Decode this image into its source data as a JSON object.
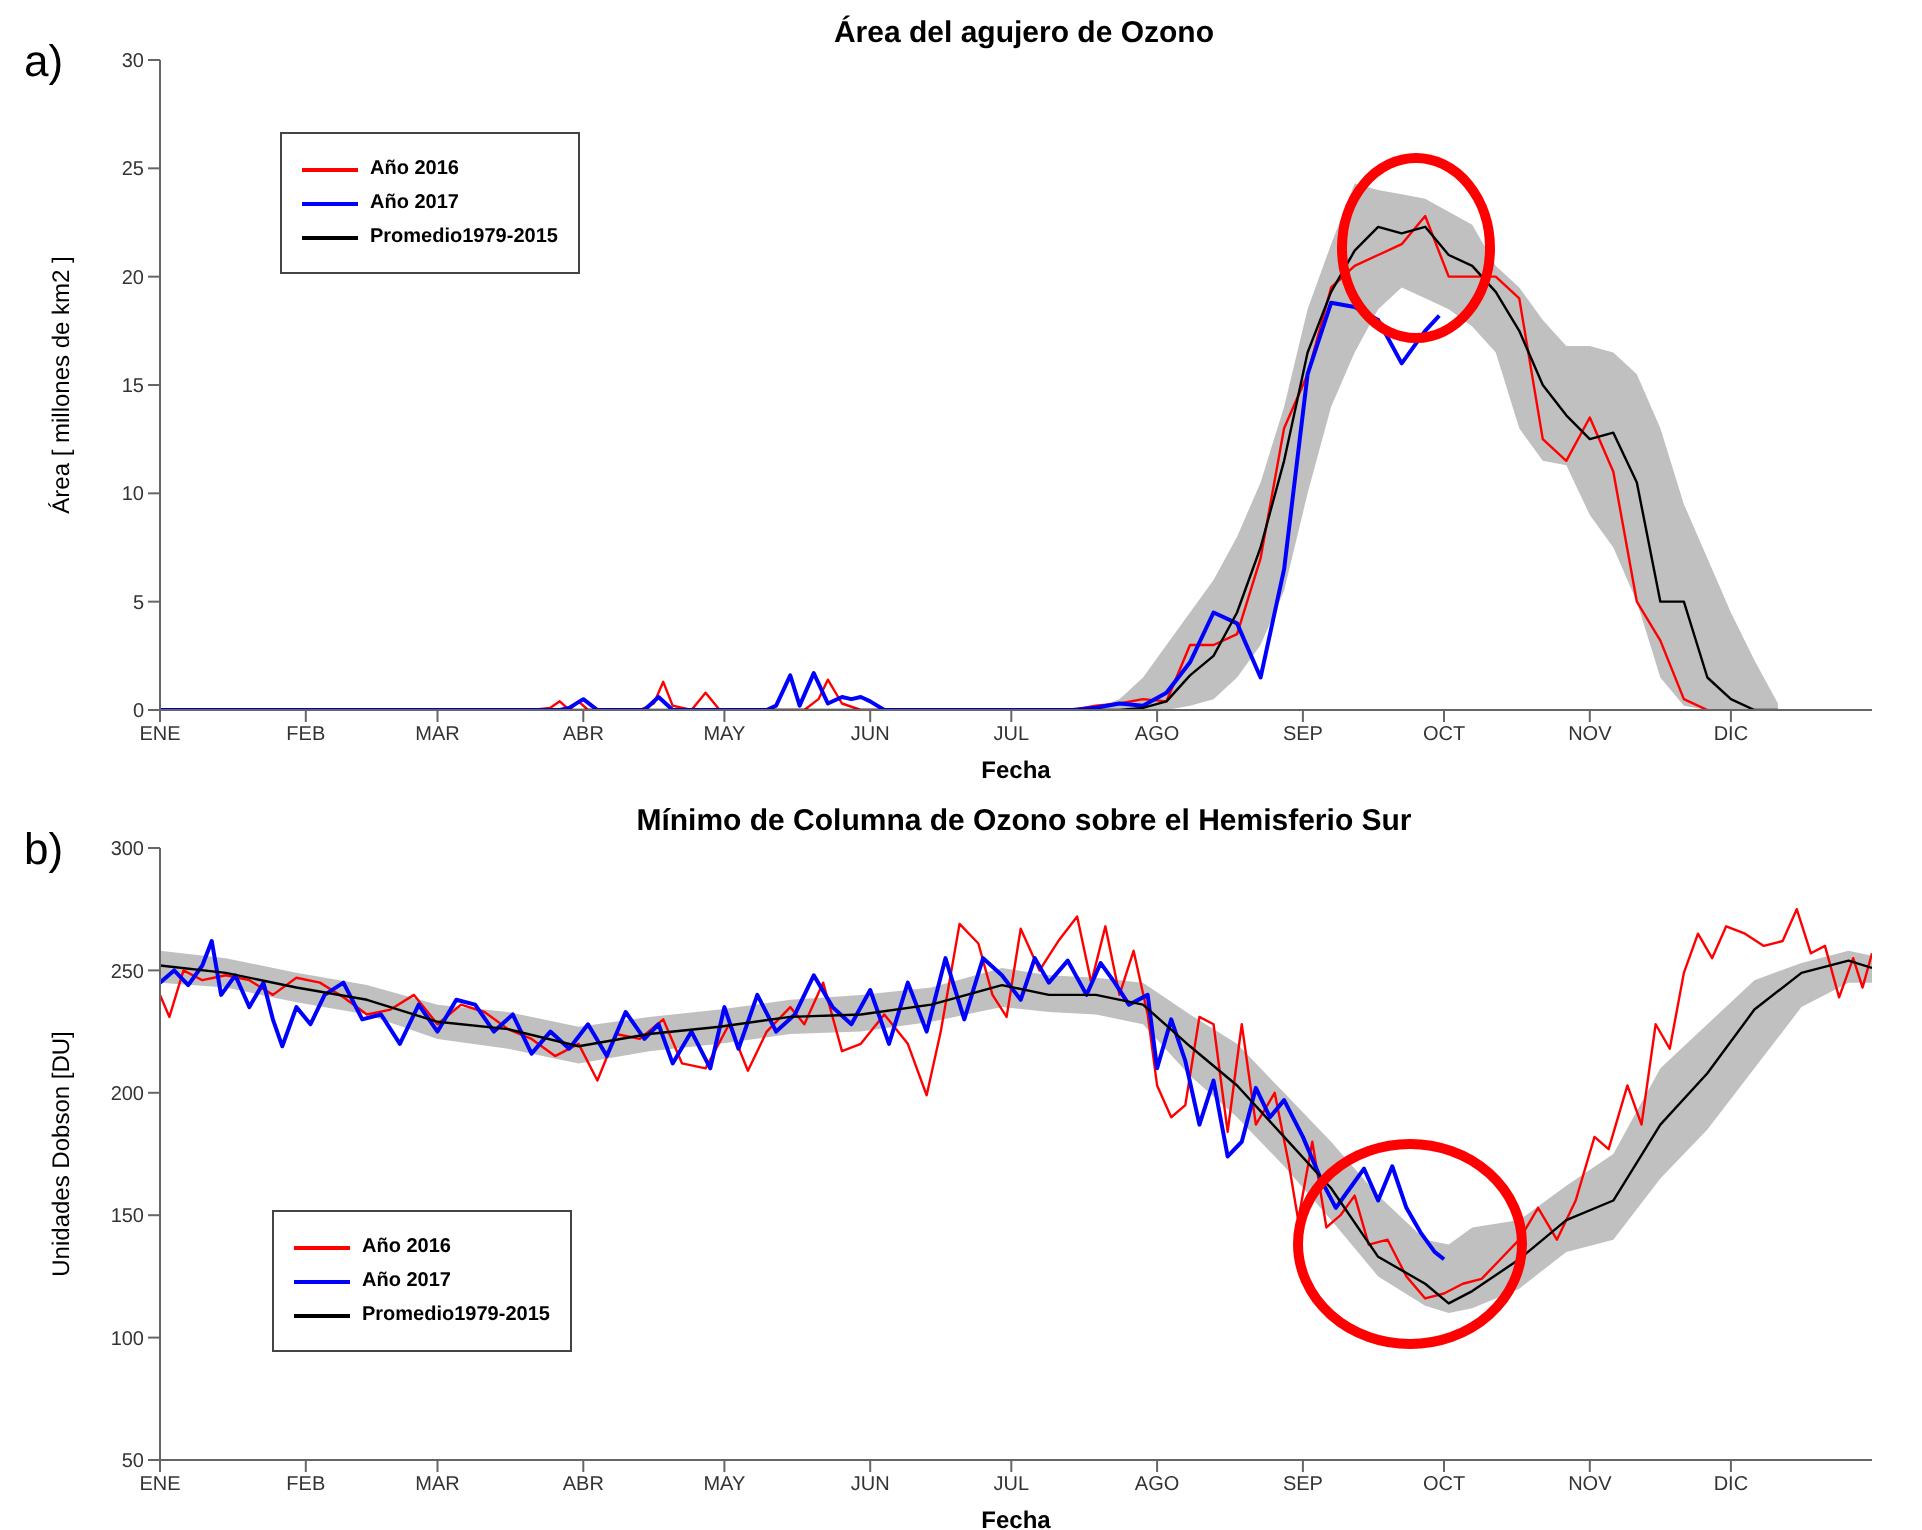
{
  "chart_data": [
    {
      "type": "line",
      "title": "Área del agujero de Ozono",
      "xlabel": "Fecha",
      "ylabel": "Área [ millones de km2 ]",
      "annotations": [
        "a)"
      ],
      "legend": "top left",
      "xlim": [
        "--01-01",
        "--12-31"
      ],
      "xticks": [
        {
          "value": "--01-01",
          "label": "ENE"
        },
        {
          "value": "--02-01",
          "label": "FEB"
        },
        {
          "value": "--03-01",
          "label": "MAR"
        },
        {
          "value": "--04-01",
          "label": "ABR"
        },
        {
          "value": "--05-01",
          "label": "MAY"
        },
        {
          "value": "--06-01",
          "label": "JUN"
        },
        {
          "value": "--07-01",
          "label": "JUL"
        },
        {
          "value": "--08-01",
          "label": "AGO"
        },
        {
          "value": "--09-01",
          "label": "SEP"
        },
        {
          "value": "--10-01",
          "label": "OCT"
        },
        {
          "value": "--11-01",
          "label": "NOV"
        },
        {
          "value": "--12-01",
          "label": "DIC"
        }
      ],
      "ylim": [
        0,
        30
      ],
      "yticks": [
        0,
        5,
        10,
        15,
        20,
        25,
        30
      ],
      "series": [
        {
          "name": "Año 2016",
          "color": "#ff0000",
          "x": [
            "--01-01",
            "--03-21",
            "--03-25",
            "--03-27",
            "--03-29",
            "--03-31",
            "--04-02",
            "--04-05",
            "--04-13",
            "--04-16",
            "--04-18",
            "--04-20",
            "--04-24",
            "--04-27",
            "--04-30",
            "--05-18",
            "--05-21",
            "--05-23",
            "--05-26",
            "--05-30",
            "--07-14",
            "--07-19",
            "--07-24",
            "--07-29",
            "--08-03",
            "--08-08",
            "--08-13",
            "--08-18",
            "--08-23",
            "--08-28",
            "--09-02",
            "--09-07",
            "--09-12",
            "--09-17",
            "--09-22",
            "--09-27",
            "--10-02",
            "--10-07",
            "--10-12",
            "--10-17",
            "--10-22",
            "--10-27",
            "--11-01",
            "--11-06",
            "--11-11",
            "--11-16",
            "--11-21",
            "--11-26"
          ],
          "values": [
            0,
            0,
            0.1,
            0.4,
            0,
            0.4,
            0,
            0,
            0,
            0.3,
            1.3,
            0.2,
            0,
            0.8,
            0,
            0,
            0.5,
            1.4,
            0.3,
            0,
            0,
            0.2,
            0.3,
            0.5,
            0.4,
            3,
            3,
            3.5,
            7,
            13,
            15.5,
            19.5,
            20.5,
            21,
            21.5,
            22.8,
            20,
            20,
            20,
            19,
            12.5,
            11.5,
            13.5,
            11,
            5,
            3.2,
            0.5,
            0
          ]
        },
        {
          "name": "Año 2017",
          "color": "#0000ff",
          "x": [
            "--01-01",
            "--03-27",
            "--03-29",
            "--04-01",
            "--04-04",
            "--04-14",
            "--04-17",
            "--04-20",
            "--05-10",
            "--05-12",
            "--05-15",
            "--05-17",
            "--05-20",
            "--05-23",
            "--05-26",
            "--05-28",
            "--05-30",
            "--06-01",
            "--06-04",
            "--06-07",
            "--07-14",
            "--07-19",
            "--07-24",
            "--07-29",
            "--08-03",
            "--08-08",
            "--08-13",
            "--08-18",
            "--08-23",
            "--08-28",
            "--09-02",
            "--09-07",
            "--09-12",
            "--09-17",
            "--09-22",
            "--09-27",
            "--09-30"
          ],
          "values": [
            0,
            0,
            0.1,
            0.5,
            0,
            0,
            0.6,
            0,
            0,
            0.2,
            1.6,
            0.2,
            1.7,
            0.3,
            0.6,
            0.5,
            0.6,
            0.4,
            0,
            0,
            0,
            0.1,
            0.3,
            0.2,
            0.8,
            2.2,
            4.5,
            4,
            1.5,
            6.5,
            15.5,
            18.8,
            18.6,
            18,
            16,
            17.5,
            18.2
          ]
        },
        {
          "name": "Promedio1979-2015",
          "color": "#000000",
          "x": [
            "--01-01",
            "--06-29",
            "--07-14",
            "--07-19",
            "--07-24",
            "--07-29",
            "--08-03",
            "--08-08",
            "--08-13",
            "--08-18",
            "--08-23",
            "--08-28",
            "--09-02",
            "--09-07",
            "--09-12",
            "--09-17",
            "--09-22",
            "--09-27",
            "--10-02",
            "--10-07",
            "--10-12",
            "--10-17",
            "--10-22",
            "--10-27",
            "--11-01",
            "--11-06",
            "--11-11",
            "--11-16",
            "--11-21",
            "--11-26",
            "--12-01",
            "--12-06",
            "--12-11"
          ],
          "values": [
            0,
            0,
            0,
            0,
            0,
            0.1,
            0.4,
            1.6,
            2.5,
            4.5,
            7.5,
            11.5,
            16.5,
            19.3,
            21.2,
            22.3,
            22,
            22.3,
            21,
            20.5,
            19.3,
            17.5,
            15,
            13.6,
            12.5,
            12.8,
            10.5,
            5,
            5,
            1.5,
            0.5,
            0,
            0
          ],
          "lower": [
            0,
            0,
            0,
            0,
            0,
            0,
            0,
            0.2,
            0.5,
            1.5,
            3,
            5.5,
            10,
            14,
            16.5,
            18.5,
            19.5,
            19,
            18.5,
            17.7,
            16.5,
            13,
            11.5,
            11.3,
            9,
            7.5,
            5,
            1.5,
            0.2,
            0,
            0,
            0,
            0
          ],
          "upper": [
            0,
            0,
            0,
            0.1,
            0.5,
            1.5,
            3,
            4.5,
            6,
            8,
            10.5,
            14,
            18.5,
            21.5,
            24.3,
            24,
            23.8,
            23.6,
            23,
            22.4,
            20.5,
            19.5,
            18,
            16.8,
            16.8,
            16.5,
            15.5,
            13,
            9.5,
            7,
            4.5,
            2.3,
            0.3
          ]
        }
      ]
    },
    {
      "type": "line",
      "title": "Mínimo de Columna de Ozono sobre el Hemisferio Sur",
      "xlabel": "Fecha",
      "ylabel": "Unidades Dobson [DU]",
      "annotations": [
        "b)"
      ],
      "legend": "bottom left",
      "xlim": [
        "--01-01",
        "--12-31"
      ],
      "xticks": [
        {
          "value": "--01-01",
          "label": "ENE"
        },
        {
          "value": "--02-01",
          "label": "FEB"
        },
        {
          "value": "--03-01",
          "label": "MAR"
        },
        {
          "value": "--04-01",
          "label": "ABR"
        },
        {
          "value": "--05-01",
          "label": "MAY"
        },
        {
          "value": "--06-01",
          "label": "JUN"
        },
        {
          "value": "--07-01",
          "label": "JUL"
        },
        {
          "value": "--08-01",
          "label": "AGO"
        },
        {
          "value": "--09-01",
          "label": "SEP"
        },
        {
          "value": "--10-01",
          "label": "OCT"
        },
        {
          "value": "--11-01",
          "label": "NOV"
        },
        {
          "value": "--12-01",
          "label": "DIC"
        }
      ],
      "ylim": [
        50,
        300
      ],
      "yticks": [
        50,
        100,
        150,
        200,
        250,
        300
      ],
      "series": [
        {
          "name": "Año 2016",
          "color": "#ff0000",
          "x": [
            "--01-01",
            "--01-03",
            "--01-06",
            "--01-10",
            "--01-15",
            "--01-20",
            "--01-25",
            "--01-30",
            "--02-04",
            "--02-09",
            "--02-14",
            "--02-19",
            "--02-24",
            "--03-01",
            "--03-06",
            "--03-11",
            "--03-16",
            "--03-21",
            "--03-26",
            "--03-31",
            "--04-04",
            "--04-08",
            "--04-13",
            "--04-18",
            "--04-22",
            "--04-27",
            "--05-02",
            "--05-06",
            "--05-10",
            "--05-15",
            "--05-18",
            "--05-22",
            "--05-26",
            "--05-30",
            "--06-04",
            "--06-09",
            "--06-13",
            "--06-16",
            "--06-20",
            "--06-24",
            "--06-27",
            "--06-30",
            "--07-03",
            "--07-07",
            "--07-11",
            "--07-15",
            "--07-18",
            "--07-21",
            "--07-24",
            "--07-27",
            "--07-30",
            "--08-01",
            "--08-04",
            "--08-07",
            "--08-10",
            "--08-13",
            "--08-16",
            "--08-19",
            "--08-22",
            "--08-26",
            "--08-29",
            "--08-31",
            "--09-03",
            "--09-06",
            "--09-09",
            "--09-12",
            "--09-15",
            "--09-19",
            "--09-23",
            "--09-27",
            "--10-01",
            "--10-05",
            "--10-09",
            "--10-13",
            "--10-17",
            "--10-21",
            "--10-25",
            "--10-29",
            "--11-02",
            "--11-05",
            "--11-09",
            "--11-12",
            "--11-15",
            "--11-18",
            "--11-21",
            "--11-24",
            "--11-27",
            "--11-30",
            "--12-04",
            "--12-08",
            "--12-12",
            "--12-15",
            "--12-18",
            "--12-21",
            "--12-24",
            "--12-27",
            "--12-29",
            "--12-31"
          ],
          "values": [
            240,
            231,
            250,
            246,
            248,
            246,
            240,
            247,
            245,
            239,
            232,
            234,
            240,
            228,
            236,
            233,
            226,
            222,
            215,
            220,
            205,
            224,
            222,
            230,
            212,
            210,
            228,
            209,
            225,
            235,
            228,
            245,
            217,
            220,
            232,
            220,
            199,
            225,
            269,
            261,
            240,
            231,
            267,
            250,
            262,
            272,
            245,
            268,
            240,
            258,
            232,
            203,
            190,
            195,
            231,
            228,
            184,
            228,
            187,
            200,
            171,
            148,
            180,
            145,
            150,
            158,
            138,
            140,
            125,
            116,
            118,
            122,
            124,
            132,
            140,
            153,
            140,
            156,
            182,
            177,
            203,
            187,
            228,
            218,
            249,
            265,
            255,
            268,
            265,
            260,
            262,
            275,
            257,
            260,
            239,
            255,
            243,
            257
          ]
        },
        {
          "name": "Año 2017",
          "color": "#0000ff",
          "x": [
            "--01-01",
            "--01-04",
            "--01-07",
            "--01-10",
            "--01-12",
            "--01-14",
            "--01-17",
            "--01-20",
            "--01-23",
            "--01-25",
            "--01-27",
            "--01-30",
            "--02-02",
            "--02-05",
            "--02-09",
            "--02-13",
            "--02-17",
            "--02-21",
            "--02-25",
            "--03-01",
            "--03-05",
            "--03-09",
            "--03-13",
            "--03-17",
            "--03-21",
            "--03-25",
            "--03-29",
            "--04-02",
            "--04-06",
            "--04-10",
            "--04-14",
            "--04-17",
            "--04-20",
            "--04-24",
            "--04-28",
            "--05-01",
            "--05-04",
            "--05-08",
            "--05-12",
            "--05-16",
            "--05-20",
            "--05-24",
            "--05-28",
            "--06-01",
            "--06-05",
            "--06-09",
            "--06-13",
            "--06-17",
            "--06-21",
            "--06-25",
            "--06-29",
            "--07-03",
            "--07-06",
            "--07-09",
            "--07-13",
            "--07-17",
            "--07-20",
            "--07-23",
            "--07-26",
            "--07-30",
            "--08-01",
            "--08-04",
            "--08-07",
            "--08-10",
            "--08-13",
            "--08-16",
            "--08-19",
            "--08-22",
            "--08-25",
            "--08-28",
            "--09-01",
            "--09-05",
            "--09-08",
            "--09-11",
            "--09-14",
            "--09-17",
            "--09-20",
            "--09-23",
            "--09-26",
            "--09-29",
            "--10-01"
          ],
          "values": [
            245,
            250,
            244,
            252,
            262,
            240,
            248,
            235,
            245,
            230,
            219,
            235,
            228,
            240,
            245,
            230,
            232,
            220,
            236,
            225,
            238,
            236,
            225,
            232,
            216,
            225,
            218,
            228,
            215,
            233,
            222,
            228,
            212,
            225,
            210,
            235,
            218,
            240,
            225,
            232,
            248,
            235,
            228,
            242,
            220,
            245,
            225,
            255,
            230,
            255,
            248,
            238,
            255,
            245,
            254,
            240,
            253,
            245,
            236,
            240,
            210,
            230,
            213,
            187,
            205,
            174,
            180,
            202,
            190,
            197,
            182,
            164,
            153,
            161,
            169,
            156,
            170,
            153,
            143,
            135,
            132
          ]
        },
        {
          "name": "Promedio1979-2015",
          "color": "#000000",
          "x": [
            "--01-01",
            "--01-15",
            "--01-30",
            "--02-14",
            "--03-01",
            "--03-16",
            "--03-31",
            "--04-15",
            "--04-30",
            "--05-15",
            "--05-30",
            "--06-14",
            "--06-29",
            "--07-09",
            "--07-19",
            "--07-29",
            "--08-08",
            "--08-18",
            "--08-28",
            "--09-07",
            "--09-17",
            "--09-27",
            "--10-02",
            "--10-07",
            "--10-17",
            "--10-27",
            "--11-06",
            "--11-16",
            "--11-26",
            "--12-06",
            "--12-16",
            "--12-26",
            "--12-31"
          ],
          "values": [
            252,
            249,
            243,
            238,
            229,
            226,
            219,
            224,
            227,
            231,
            232,
            236,
            244,
            240,
            240,
            236,
            219,
            203,
            182,
            161,
            133,
            122,
            114,
            119,
            132,
            148,
            156,
            187,
            208,
            234,
            249,
            254,
            251
          ],
          "lower": [
            245,
            243,
            237,
            232,
            222,
            218,
            212,
            217,
            220,
            224,
            225,
            229,
            235,
            233,
            232,
            228,
            207,
            190,
            170,
            148,
            125,
            113,
            110,
            112,
            120,
            135,
            140,
            165,
            185,
            210,
            235,
            245,
            245
          ],
          "upper": [
            258,
            255,
            249,
            244,
            236,
            233,
            227,
            231,
            234,
            238,
            240,
            243,
            251,
            248,
            247,
            245,
            232,
            220,
            200,
            180,
            158,
            140,
            138,
            145,
            148,
            162,
            175,
            210,
            228,
            246,
            253,
            258,
            256
          ]
        }
      ]
    }
  ]
}
